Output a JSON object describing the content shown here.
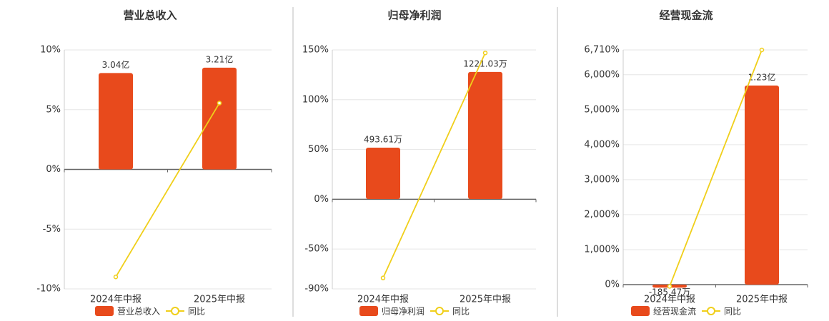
{
  "chart_data": [
    {
      "type": "bar",
      "title": "营业总收入",
      "categories": [
        "2024年中报",
        "2025年中报"
      ],
      "series": [
        {
          "name": "营业总收入",
          "color": "#e84a1c",
          "axis": "y2",
          "values": [
            304000000,
            321000000
          ],
          "value_labels": [
            "3.04亿",
            "3.21亿"
          ]
        },
        {
          "name": "同比",
          "type": "line",
          "color": "#f0cf1a",
          "values": [
            -9.0,
            5.55
          ]
        }
      ],
      "ylim": [
        -10,
        10
      ],
      "yticks": [
        {
          "value": 10,
          "label": "10%"
        },
        {
          "value": 5,
          "label": "5%"
        },
        {
          "value": 0,
          "label": "0%"
        },
        {
          "value": -5,
          "label": "-5%"
        },
        {
          "value": -10,
          "label": "-10%"
        }
      ],
      "y2lim": [
        -377000000,
        377000000
      ],
      "grid": true
    },
    {
      "type": "bar",
      "title": "归母净利润",
      "categories": [
        "2024年中报",
        "2025年中报"
      ],
      "series": [
        {
          "name": "归母净利润",
          "color": "#e84a1c",
          "axis": "y2",
          "values": [
            4936100,
            12210300
          ],
          "value_labels": [
            "493.61万",
            "1221.03万"
          ]
        },
        {
          "name": "同比",
          "type": "line",
          "color": "#f0cf1a",
          "values": [
            -79,
            147
          ]
        }
      ],
      "ylim": [
        -90,
        150
      ],
      "yticks": [
        {
          "value": 150,
          "label": "150%"
        },
        {
          "value": 100,
          "label": "100%"
        },
        {
          "value": 50,
          "label": "50%"
        },
        {
          "value": 0,
          "label": "0%"
        },
        {
          "value": -50,
          "label": "-50%"
        },
        {
          "value": -90,
          "label": "-90%"
        }
      ],
      "y2lim": [
        -8640000,
        14330000
      ],
      "grid": true
    },
    {
      "type": "bar",
      "title": "经营现金流",
      "categories": [
        "2024年中报",
        "2025年中报"
      ],
      "series": [
        {
          "name": "经营现金流",
          "color": "#e84a1c",
          "axis": "y2",
          "values": [
            -1854700,
            123000000
          ],
          "value_labels": [
            "-185.47万",
            "1.23亿"
          ]
        },
        {
          "name": "同比",
          "type": "line",
          "color": "#f0cf1a",
          "values": [
            -50,
            6710
          ]
        }
      ],
      "ylim": [
        0,
        6710
      ],
      "yticks": [
        {
          "value": 6710,
          "label": "6,710%"
        },
        {
          "value": 6000,
          "label": "6,000%"
        },
        {
          "value": 5000,
          "label": "5,000%"
        },
        {
          "value": 4000,
          "label": "4,000%"
        },
        {
          "value": 3000,
          "label": "3,000%"
        },
        {
          "value": 2000,
          "label": "2,000%"
        },
        {
          "value": 1000,
          "label": "1,000%"
        },
        {
          "value": 0,
          "label": "0%"
        }
      ],
      "y2lim": [
        0,
        145000000
      ],
      "grid": true
    }
  ]
}
